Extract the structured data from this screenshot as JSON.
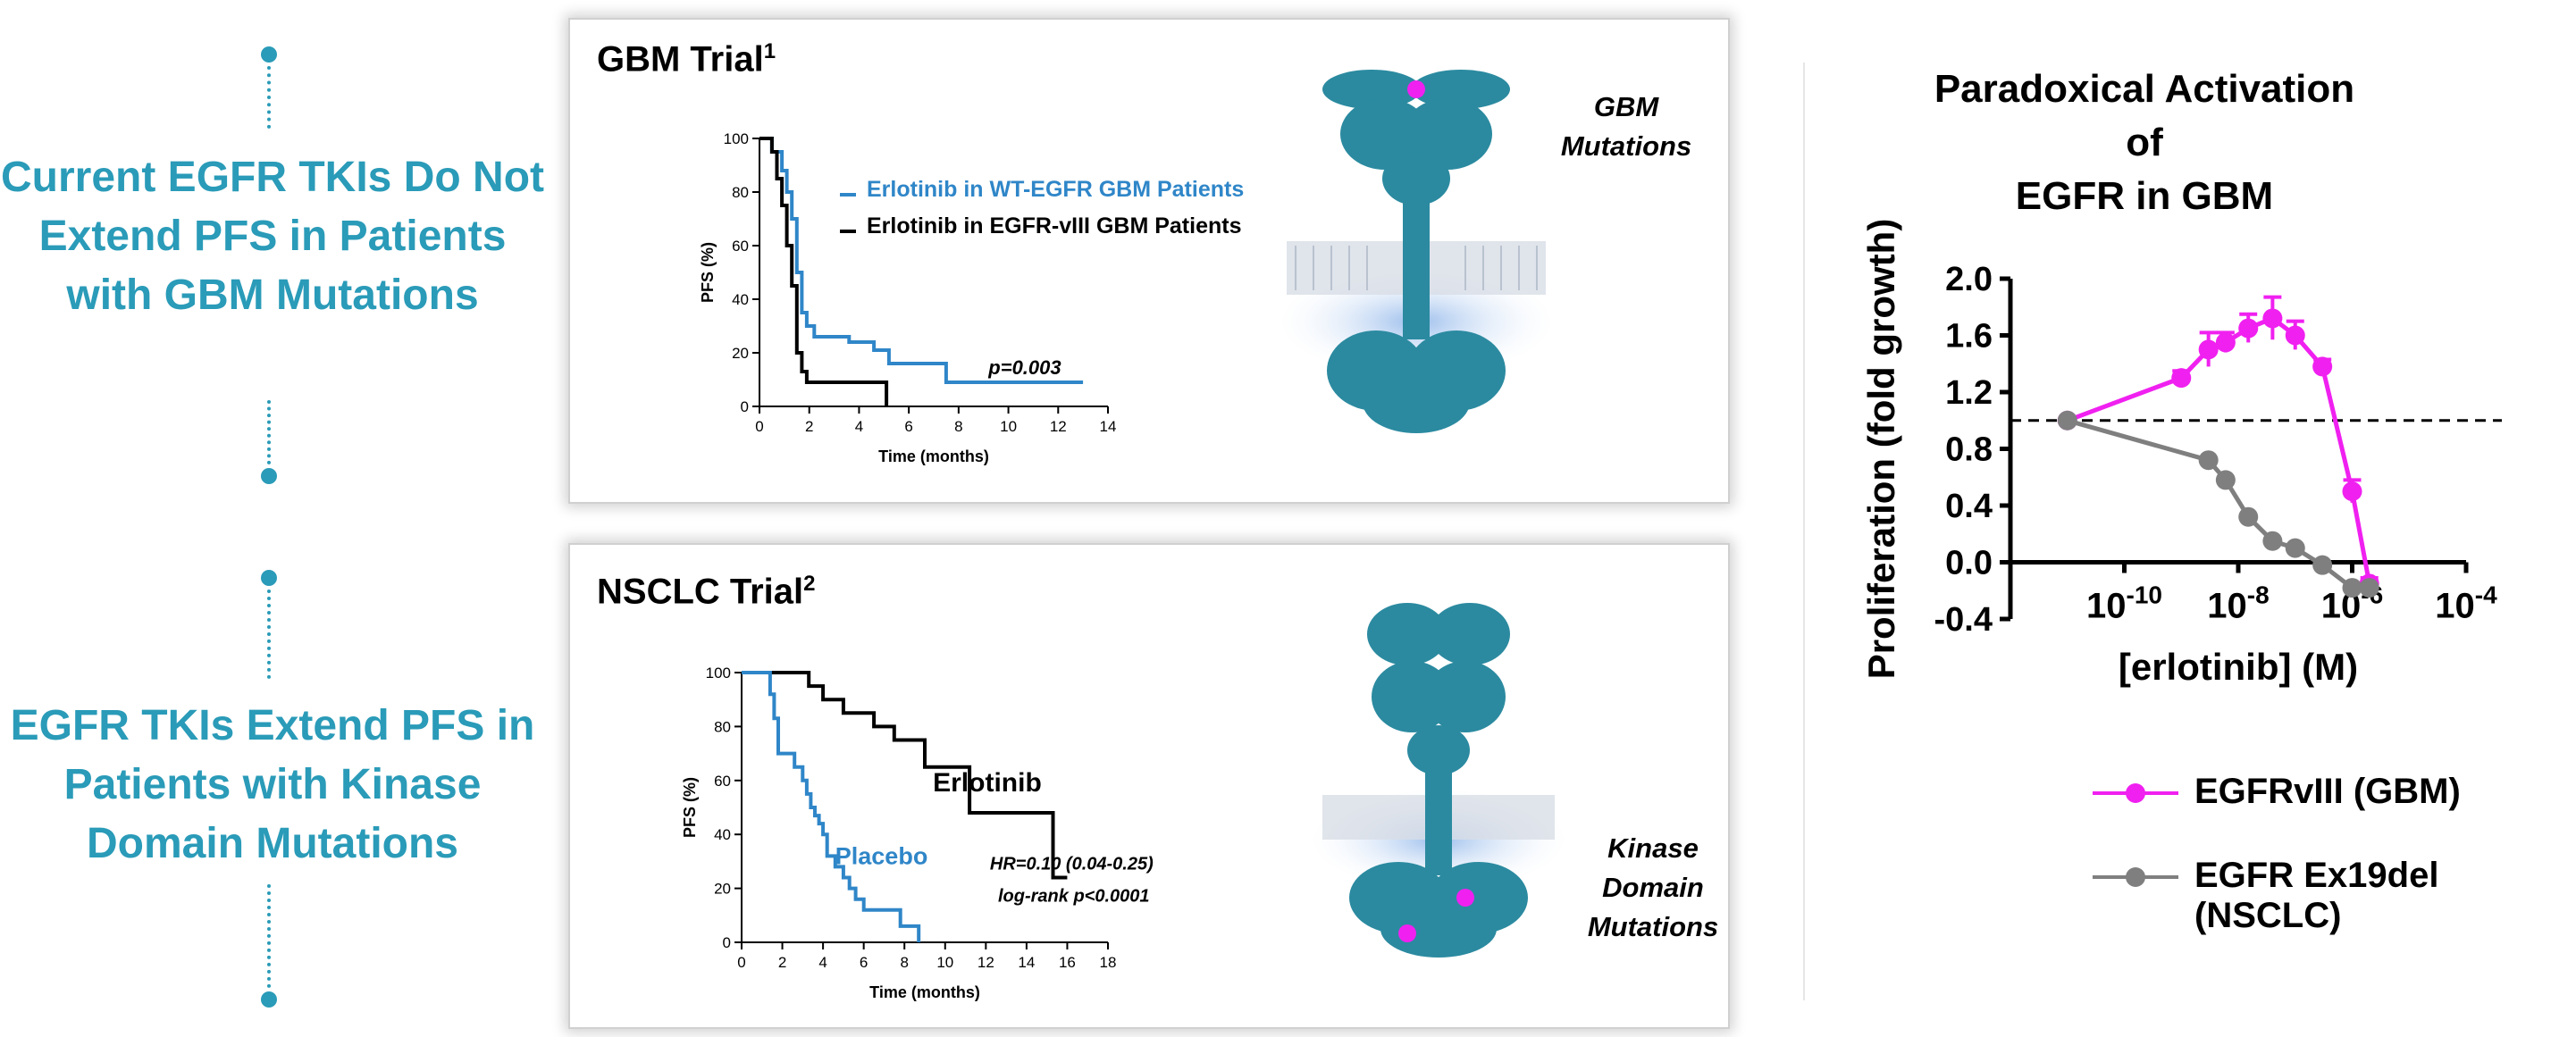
{
  "left": {
    "message_1": "Current EGFR TKIs Do Not Extend PFS in Patients with GBM Mutations",
    "message_2": "EGFR TKIs Extend PFS in Patients with Kinase Domain Mutations"
  },
  "gbm_panel": {
    "title": "GBM Trial",
    "title_sup": "1",
    "structure_label_1": "GBM",
    "structure_label_2": "Mutations",
    "p_value": "p=0.003"
  },
  "nsclc_panel": {
    "title": "NSCLC Trial",
    "title_sup": "2",
    "structure_label_1": "Kinase",
    "structure_label_2": "Domain",
    "structure_label_3": "Mutations",
    "hr_text": "HR=0.10 (0.04-0.25)",
    "logrank_text": "log-rank p<0.0001",
    "series_label_erlotinib": "Erlotinib",
    "series_label_placebo": "Placebo"
  },
  "right_panel": {
    "title_line_1": "Paradoxical Activation of",
    "title_line_2": "EGFR in GBM",
    "legend_1": "EGFRvIII (GBM)",
    "legend_2": "EGFR Ex19del (NSCLC)"
  },
  "colors": {
    "teal": "#2a9bb8",
    "gbm_blue": "#2f86c8",
    "magenta": "#f020f0",
    "gray": "#7f7f7f",
    "protein": "#2b8aa0"
  },
  "chart_data": [
    {
      "type": "line",
      "subtype": "kaplan-meier",
      "xlabel": "Time (months)",
      "ylabel": "PFS (%)",
      "xlim": [
        0,
        14
      ],
      "ylim": [
        0,
        100
      ],
      "x_ticks": [
        0,
        2,
        4,
        6,
        8,
        10,
        12,
        14
      ],
      "y_ticks": [
        0,
        20,
        40,
        60,
        80,
        100
      ],
      "legend_position": "top-right",
      "series": [
        {
          "name": "Erlotinib in WT-EGFR GBM Patients",
          "color": "#2f86c8",
          "x": [
            0,
            0.5,
            0.5,
            0.9,
            0.9,
            1.1,
            1.1,
            1.3,
            1.3,
            1.5,
            1.5,
            1.7,
            1.7,
            1.9,
            1.9,
            2.2,
            2.2,
            3.6,
            3.6,
            4.6,
            4.6,
            5.2,
            5.2,
            7.5,
            7.5,
            13
          ],
          "y": [
            100,
            100,
            95,
            95,
            88,
            88,
            80,
            80,
            70,
            70,
            50,
            50,
            35,
            35,
            30,
            30,
            26,
            26,
            24,
            24,
            21,
            21,
            16,
            16,
            9,
            9
          ]
        },
        {
          "name": "Erlotinib in EGFR-vIII GBM Patients",
          "color": "#000000",
          "x": [
            0,
            0.5,
            0.5,
            0.7,
            0.7,
            0.9,
            0.9,
            1.1,
            1.1,
            1.3,
            1.3,
            1.5,
            1.5,
            1.7,
            1.7,
            1.9,
            1.9,
            5.1,
            5.1
          ],
          "y": [
            100,
            100,
            95,
            95,
            85,
            85,
            75,
            75,
            60,
            60,
            45,
            45,
            20,
            20,
            13,
            13,
            9,
            9,
            0
          ]
        }
      ]
    },
    {
      "type": "line",
      "subtype": "kaplan-meier",
      "xlabel": "Time (months)",
      "ylabel": "PFS (%)",
      "xlim": [
        0,
        18
      ],
      "ylim": [
        0,
        100
      ],
      "x_ticks": [
        0,
        2,
        4,
        6,
        8,
        10,
        12,
        14,
        16,
        18
      ],
      "y_ticks": [
        0,
        20,
        40,
        60,
        80,
        100
      ],
      "series": [
        {
          "name": "Erlotinib",
          "color": "#000000",
          "x": [
            0,
            3.3,
            3.3,
            4.0,
            4.0,
            5.0,
            5.0,
            6.5,
            6.5,
            7.5,
            7.5,
            9.0,
            9.0,
            11.2,
            11.2,
            15.3,
            15.3,
            16.0
          ],
          "y": [
            100,
            100,
            95,
            95,
            90,
            90,
            85,
            85,
            80,
            80,
            75,
            75,
            65,
            65,
            48,
            48,
            24,
            24
          ]
        },
        {
          "name": "Placebo",
          "color": "#2f86c8",
          "x": [
            0,
            1.4,
            1.4,
            1.6,
            1.6,
            1.8,
            1.8,
            2.6,
            2.6,
            3.0,
            3.0,
            3.2,
            3.2,
            3.4,
            3.4,
            3.6,
            3.6,
            3.8,
            3.8,
            4.0,
            4.0,
            4.2,
            4.2,
            4.6,
            4.6,
            5.0,
            5.0,
            5.3,
            5.3,
            5.6,
            5.6,
            6.0,
            6.0,
            7.8,
            7.8,
            8.7,
            8.7
          ],
          "y": [
            100,
            100,
            92,
            92,
            83,
            83,
            70,
            70,
            65,
            65,
            60,
            60,
            55,
            55,
            50,
            50,
            47,
            47,
            44,
            44,
            40,
            40,
            32,
            32,
            28,
            28,
            24,
            24,
            20,
            20,
            16,
            16,
            12,
            12,
            6,
            6,
            0
          ]
        }
      ]
    },
    {
      "type": "line",
      "subtype": "dose-response",
      "xlabel": "[erlotinib]  (M)",
      "ylabel": "Proliferation (fold growth)",
      "x_scale": "log",
      "xlim": [
        1e-12,
        0.0001
      ],
      "ylim": [
        -0.4,
        2.0
      ],
      "x_tick_labels": [
        "10^-10",
        "10^-8",
        "10^-6",
        "10^-4"
      ],
      "y_tick_labels": [
        "-0.4",
        "0.0",
        "0.4",
        "0.8",
        "1.2",
        "1.6",
        "2.0"
      ],
      "reference_line_y": 1.0,
      "legend_position": "bottom",
      "series": [
        {
          "name": "EGFRvIII (GBM)",
          "color": "#f020f0",
          "x": [
            1e-11,
            1e-09,
            3e-09,
            6e-09,
            1.5e-08,
            4e-08,
            1e-07,
            3e-07,
            1e-06,
            2e-06
          ],
          "y": [
            1.0,
            1.3,
            1.5,
            1.55,
            1.65,
            1.72,
            1.6,
            1.38,
            0.5,
            -0.15
          ],
          "error": [
            0,
            0.05,
            0.12,
            0.07,
            0.1,
            0.15,
            0.1,
            0.05,
            0.08,
            0.04
          ]
        },
        {
          "name": "EGFR Ex19del (NSCLC)",
          "color": "#7f7f7f",
          "x": [
            1e-11,
            3e-09,
            6e-09,
            1.5e-08,
            4e-08,
            1e-07,
            3e-07,
            1e-06,
            2e-06
          ],
          "y": [
            1.0,
            0.72,
            0.58,
            0.32,
            0.15,
            0.1,
            -0.02,
            -0.18,
            -0.18
          ]
        }
      ]
    }
  ]
}
